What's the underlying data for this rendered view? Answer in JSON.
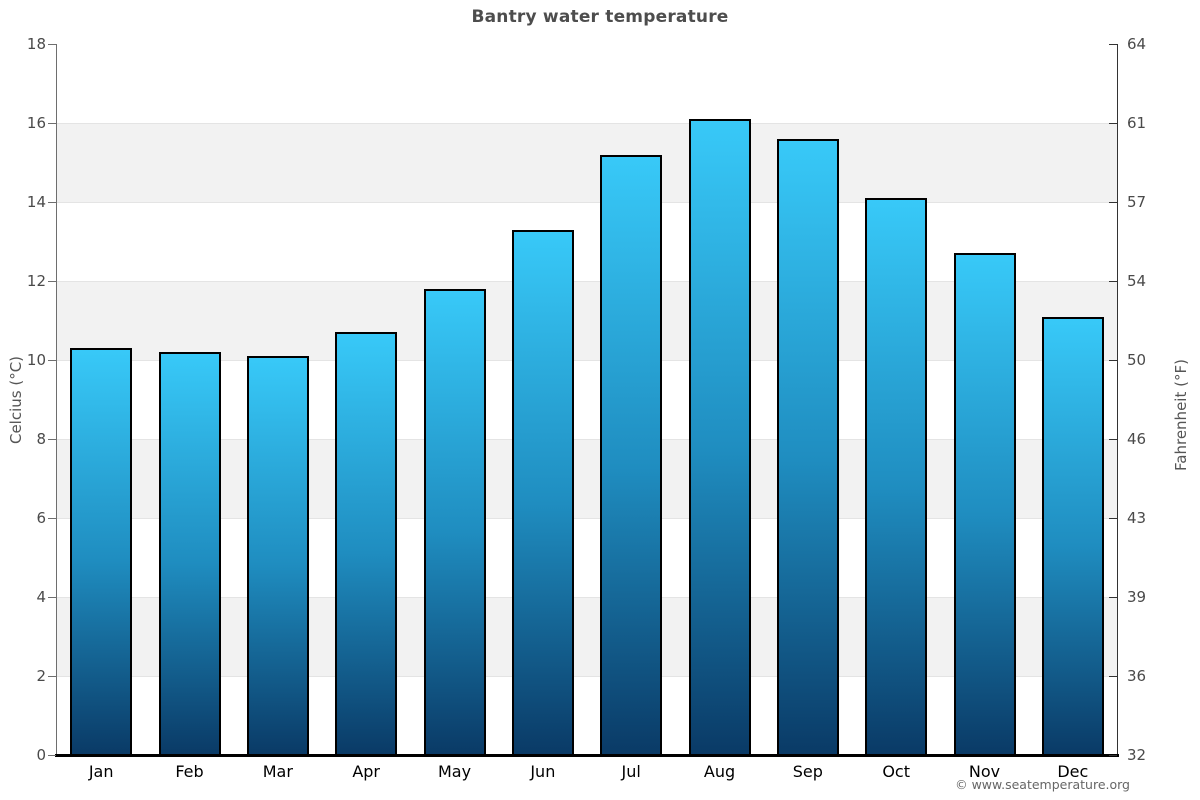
{
  "chart_data": {
    "type": "bar",
    "title": "Bantry water temperature",
    "categories": [
      "Jan",
      "Feb",
      "Mar",
      "Apr",
      "May",
      "Jun",
      "Jul",
      "Aug",
      "Sep",
      "Oct",
      "Nov",
      "Dec"
    ],
    "values": [
      10.3,
      10.2,
      10.1,
      10.7,
      11.8,
      13.3,
      15.2,
      16.1,
      15.6,
      14.1,
      12.7,
      11.1
    ],
    "xlabel": "",
    "ylabel": "Celcius (°C)",
    "y2label": "Fahrenheit (°F)",
    "ylim": [
      0,
      18
    ],
    "yticks": [
      0,
      2,
      4,
      6,
      8,
      10,
      12,
      14,
      16,
      18
    ],
    "y2ticks": [
      32,
      36,
      39,
      43,
      46,
      50,
      54,
      57,
      61,
      64
    ],
    "gray_bands": [
      [
        14,
        16
      ],
      [
        10,
        12
      ],
      [
        6,
        8
      ],
      [
        2,
        4
      ]
    ],
    "grid": true,
    "legend_position": "none",
    "colors": {
      "bar_gradient_top": "#38c9f8",
      "bar_gradient_mid": "#1f8dc0",
      "bar_gradient_bottom": "#0a3a66",
      "bar_border": "#000000",
      "band": "#f2f2f2",
      "gridline": "#e4e4e4",
      "title_text": "#4d4d4d",
      "tick_text": "#4a4a4a",
      "month_text": "#000000",
      "copyright_text": "#666666"
    }
  },
  "footer": {
    "copyright": "© www.seatemperature.org"
  }
}
